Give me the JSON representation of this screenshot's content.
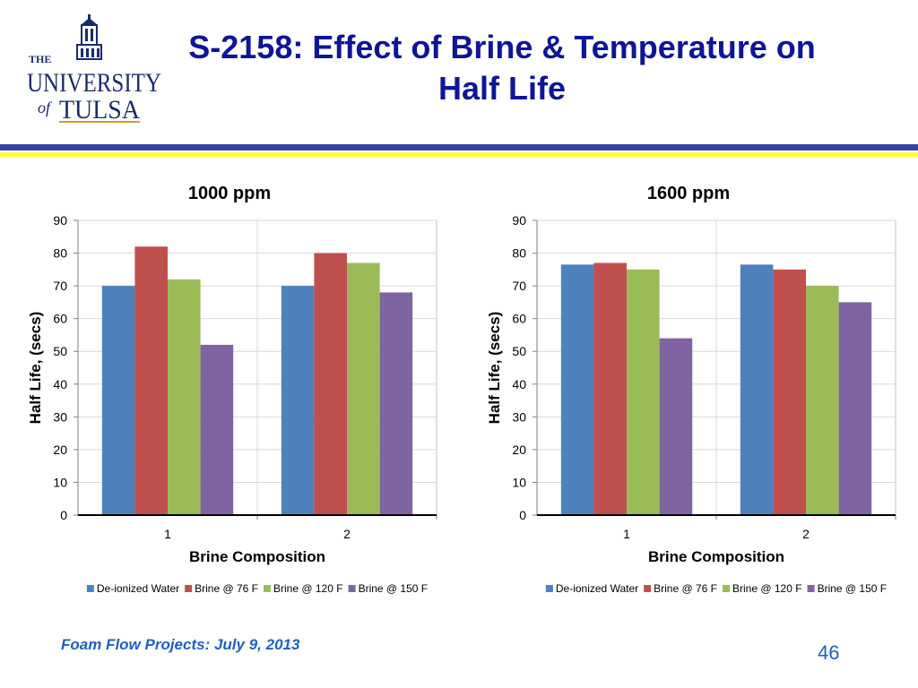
{
  "slide": {
    "title_line1": "S-2158: Effect of Brine & Temperature on",
    "title_line2": "Half Life",
    "footer": "Foam Flow Projects: July 9, 2013",
    "page_number": "46"
  },
  "logo": {
    "the": "THE",
    "university": "UNIVERSITY",
    "of": "of",
    "tulsa": "TULSA",
    "colors": {
      "navy": "#1a2a6c",
      "gold": "#c9a227"
    }
  },
  "colors": {
    "title": "#0f1596",
    "rule_blue": "#3b3fa8",
    "rule_yellow": "#ffff33",
    "footer": "#1f5fbf"
  },
  "chart_data": [
    {
      "type": "bar",
      "title": "1000 ppm",
      "xlabel": "Brine Composition",
      "ylabel": "Half Life, (secs)",
      "categories": [
        "1",
        "2"
      ],
      "ylim": [
        0,
        90
      ],
      "yticks": [
        0,
        10,
        20,
        30,
        40,
        50,
        60,
        70,
        80,
        90
      ],
      "grid": true,
      "legend": "bottom",
      "series": [
        {
          "name": "De-ionized Water",
          "color": "#4f81bd",
          "values": [
            70,
            70
          ]
        },
        {
          "name": "Brine @ 76 F",
          "color": "#c0504d",
          "values": [
            82,
            80
          ]
        },
        {
          "name": "Brine @ 120 F",
          "color": "#9bbb59",
          "values": [
            72,
            77
          ]
        },
        {
          "name": "Brine @ 150 F",
          "color": "#8064a2",
          "values": [
            52,
            68
          ]
        }
      ]
    },
    {
      "type": "bar",
      "title": "1600 ppm",
      "xlabel": "Brine Composition",
      "ylabel": "Half Life, (secs)",
      "categories": [
        "1",
        "2"
      ],
      "ylim": [
        0,
        90
      ],
      "yticks": [
        0,
        10,
        20,
        30,
        40,
        50,
        60,
        70,
        80,
        90
      ],
      "grid": true,
      "legend": "bottom",
      "series": [
        {
          "name": "De-ionized Water",
          "color": "#4f81bd",
          "values": [
            76.5,
            76.5
          ]
        },
        {
          "name": "Brine @ 76 F",
          "color": "#c0504d",
          "values": [
            77,
            75
          ]
        },
        {
          "name": "Brine @ 120 F",
          "color": "#9bbb59",
          "values": [
            75,
            70
          ]
        },
        {
          "name": "Brine @ 150 F",
          "color": "#8064a2",
          "values": [
            54,
            65
          ]
        }
      ]
    }
  ]
}
